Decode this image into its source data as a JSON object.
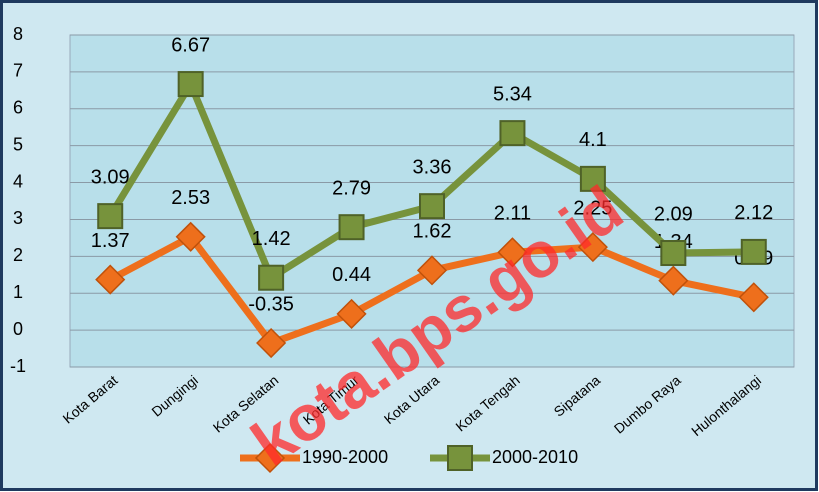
{
  "chart_data": {
    "type": "line",
    "categories": [
      "Kota Barat",
      "Dungingi",
      "Kota Selatan",
      "Kota Timur",
      "Kota Utara",
      "Kota Tengah",
      "Sipatana",
      "Dumbo Raya",
      "Hulonthalangi"
    ],
    "series": [
      {
        "name": "1990-2000",
        "color": "#ee6f1c",
        "marker": "diamond",
        "values": [
          1.37,
          2.53,
          -0.35,
          0.44,
          1.62,
          2.11,
          2.25,
          1.34,
          0.89
        ]
      },
      {
        "name": "2000-2010",
        "color": "#77933c",
        "marker": "square",
        "values": [
          3.09,
          6.67,
          1.42,
          2.79,
          3.36,
          5.34,
          4.1,
          2.09,
          2.12
        ]
      }
    ],
    "ylim": [
      -1,
      8
    ],
    "yticks": [
      -1,
      0,
      1,
      2,
      3,
      4,
      5,
      6,
      7,
      8
    ],
    "grid": true,
    "legend": "bottom",
    "watermark": "kota.bps.go.id"
  }
}
